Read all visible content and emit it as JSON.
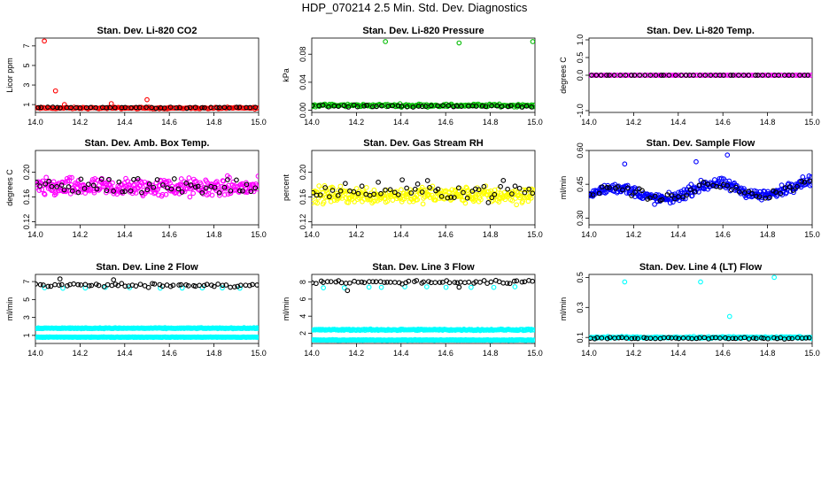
{
  "title": "HDP_070214  2.5 Min. Std. Dev. Diagnostics",
  "chart_data": [
    {
      "type": "scatter",
      "title": "Stan. Dev. Li-820 CO2",
      "ylabel": "Licor ppm",
      "xlim": [
        14.0,
        15.0
      ],
      "ylim": [
        0.2,
        7.8
      ],
      "xticks": [
        "14.0",
        "14.2",
        "14.4",
        "14.6",
        "14.8",
        "15.0"
      ],
      "yticks": [
        "1",
        "3",
        "5",
        "7"
      ],
      "colors": {
        "primary": "#ff0000",
        "secondary": "#000000"
      },
      "series": [
        {
          "color": "#ff0000",
          "base": 0.65,
          "noise": 0.12,
          "count": 170,
          "outliers": [
            [
              14.04,
              7.5
            ],
            [
              14.09,
              2.4
            ],
            [
              14.34,
              1.1
            ],
            [
              14.5,
              1.5
            ],
            [
              14.13,
              1.0
            ]
          ]
        },
        {
          "color": "#000000",
          "base": 0.7,
          "noise": 0.1,
          "count": 45,
          "outliers": []
        }
      ]
    },
    {
      "type": "scatter",
      "title": "Stan. Dev. Li-820 Pressure",
      "ylabel": "kPa",
      "xlim": [
        14.0,
        15.0
      ],
      "ylim": [
        -0.003,
        0.103
      ],
      "xticks": [
        "14.0",
        "14.2",
        "14.4",
        "14.6",
        "14.8",
        "15.0"
      ],
      "yticks": [
        "0.00",
        "0.04",
        "0.08"
      ],
      "colors": {
        "primary": "#00bb00",
        "secondary": "#000000"
      },
      "series": [
        {
          "color": "#00bb00",
          "base": 0.007,
          "noise": 0.003,
          "count": 180,
          "outliers": [
            [
              14.33,
              0.098
            ],
            [
              14.66,
              0.096
            ],
            [
              14.99,
              0.098
            ]
          ]
        },
        {
          "color": "#000000",
          "base": 0.006,
          "noise": 0.002,
          "count": 45,
          "outliers": []
        }
      ]
    },
    {
      "type": "scatter",
      "title": "Stan. Dev. Li-820 Temp.",
      "ylabel": "degrees C",
      "xlim": [
        14.0,
        15.0
      ],
      "ylim": [
        -1.05,
        1.05
      ],
      "xticks": [
        "14.0",
        "14.2",
        "14.4",
        "14.6",
        "14.8",
        "15.0"
      ],
      "yticks": [
        "-1.0",
        "0.0",
        "0.5",
        "1.0"
      ],
      "colors": {
        "primary": "#ff00ff",
        "secondary": "#000000"
      },
      "series": [
        {
          "color": "#ff00ff",
          "base": 0.0,
          "noise": 0.0,
          "count": 110,
          "outliers": []
        },
        {
          "color": "#000000",
          "base": 0.0,
          "noise": 0.0,
          "count": 45,
          "outliers": []
        }
      ]
    },
    {
      "type": "scatter",
      "title": "Stan. Dev. Amb. Box Temp.",
      "ylabel": "degrees C",
      "xlim": [
        14.0,
        15.0
      ],
      "ylim": [
        0.115,
        0.235
      ],
      "xticks": [
        "14.0",
        "14.2",
        "14.4",
        "14.6",
        "14.8",
        "15.0"
      ],
      "yticks": [
        "0.12",
        "0.16",
        "0.20"
      ],
      "colors": {
        "primary": "#ff00ff",
        "secondary": "#000000"
      },
      "series": [
        {
          "color": "#ff00ff",
          "base": 0.175,
          "noise": 0.022,
          "count": 320,
          "outliers": []
        },
        {
          "color": "#000000",
          "base": 0.178,
          "noise": 0.022,
          "count": 55,
          "outliers": []
        }
      ]
    },
    {
      "type": "scatter",
      "title": "Stan. Dev. Gas Stream RH",
      "ylabel": "percent",
      "xlim": [
        14.0,
        15.0
      ],
      "ylim": [
        0.115,
        0.235
      ],
      "xticks": [
        "14.0",
        "14.2",
        "14.4",
        "14.6",
        "14.8",
        "15.0"
      ],
      "yticks": [
        "0.12",
        "0.16",
        "0.20"
      ],
      "colors": {
        "primary": "#ffff00",
        "secondary": "#000000"
      },
      "series": [
        {
          "color": "#ffff00",
          "base": 0.163,
          "noise": 0.02,
          "count": 320,
          "outliers": []
        },
        {
          "color": "#000000",
          "base": 0.17,
          "noise": 0.022,
          "count": 55,
          "outliers": []
        }
      ]
    },
    {
      "type": "scatter",
      "title": "Stan. Dev. Sample Flow",
      "ylabel": "ml/min",
      "xlim": [
        14.0,
        15.0
      ],
      "ylim": [
        0.27,
        0.6
      ],
      "xticks": [
        "14.0",
        "14.2",
        "14.4",
        "14.6",
        "14.8",
        "15.0"
      ],
      "yticks": [
        "0.30",
        "0.45",
        "0.60"
      ],
      "colors": {
        "primary": "#0000ff",
        "secondary": "#000000"
      },
      "series": [
        {
          "color": "#0000ff",
          "base": 0.4,
          "noise": 0.035,
          "count": 320,
          "wave": true,
          "outliers": [
            [
              14.16,
              0.54
            ],
            [
              14.48,
              0.55
            ],
            [
              14.62,
              0.58
            ]
          ]
        },
        {
          "color": "#000000",
          "base": 0.4,
          "noise": 0.03,
          "count": 55,
          "wave": true,
          "outliers": []
        }
      ]
    },
    {
      "type": "scatter",
      "title": "Stan. Dev. Line 2 Flow",
      "ylabel": "ml/min",
      "xlim": [
        14.0,
        15.0
      ],
      "ylim": [
        0.1,
        7.8
      ],
      "xticks": [
        "14.0",
        "14.2",
        "14.4",
        "14.6",
        "14.8",
        "15.0"
      ],
      "yticks": [
        "1",
        "3",
        "5",
        "7"
      ],
      "colors": {
        "primary": "#00ffff",
        "secondary": "#000000"
      },
      "series": [
        {
          "color": "#00ffff",
          "base": 1.8,
          "noise": 0.08,
          "count": 260,
          "outliers": []
        },
        {
          "color": "#00ffff",
          "base": 0.8,
          "noise": 0.05,
          "count": 260,
          "outliers": []
        },
        {
          "color": "#00ffff",
          "base": 6.3,
          "noise": 0.1,
          "count": 10,
          "outliers": []
        },
        {
          "color": "#000000",
          "base": 6.6,
          "noise": 0.3,
          "count": 60,
          "outliers": [
            [
              14.11,
              7.3
            ],
            [
              14.35,
              7.2
            ]
          ]
        }
      ]
    },
    {
      "type": "scatter",
      "title": "Stan. Dev. Line 3 Flow",
      "ylabel": "ml/min",
      "xlim": [
        14.0,
        15.0
      ],
      "ylim": [
        0.8,
        8.9
      ],
      "xticks": [
        "14.0",
        "14.2",
        "14.4",
        "14.6",
        "14.8",
        "15.0"
      ],
      "yticks": [
        "2",
        "4",
        "6",
        "8"
      ],
      "colors": {
        "primary": "#00ffff",
        "secondary": "#000000"
      },
      "series": [
        {
          "color": "#00ffff",
          "base": 2.4,
          "noise": 0.12,
          "count": 260,
          "outliers": []
        },
        {
          "color": "#00ffff",
          "base": 1.2,
          "noise": 0.06,
          "count": 260,
          "outliers": []
        },
        {
          "color": "#00ffff",
          "base": 7.4,
          "noise": 0.1,
          "count": 10,
          "outliers": []
        },
        {
          "color": "#000000",
          "base": 8.0,
          "noise": 0.3,
          "count": 60,
          "outliers": [
            [
              14.16,
              7.0
            ],
            [
              14.66,
              7.4
            ]
          ]
        }
      ]
    },
    {
      "type": "scatter",
      "title": "Stan. Dev. Line 4 (LT) Flow",
      "ylabel": "ml/min",
      "xlim": [
        14.0,
        15.0
      ],
      "ylim": [
        0.06,
        0.52
      ],
      "xticks": [
        "14.0",
        "14.2",
        "14.4",
        "14.6",
        "14.8",
        "15.0"
      ],
      "yticks": [
        "0.1",
        "0.3",
        "0.5"
      ],
      "colors": {
        "primary": "#00ffff",
        "secondary": "#000000"
      },
      "series": [
        {
          "color": "#00ffff",
          "base": 0.1,
          "noise": 0.008,
          "count": 260,
          "outliers": [
            [
              14.16,
              0.47
            ],
            [
              14.5,
              0.47
            ],
            [
              14.63,
              0.24
            ],
            [
              14.83,
              0.5
            ]
          ]
        },
        {
          "color": "#000000",
          "base": 0.095,
          "noise": 0.008,
          "count": 55,
          "outliers": []
        }
      ]
    }
  ]
}
